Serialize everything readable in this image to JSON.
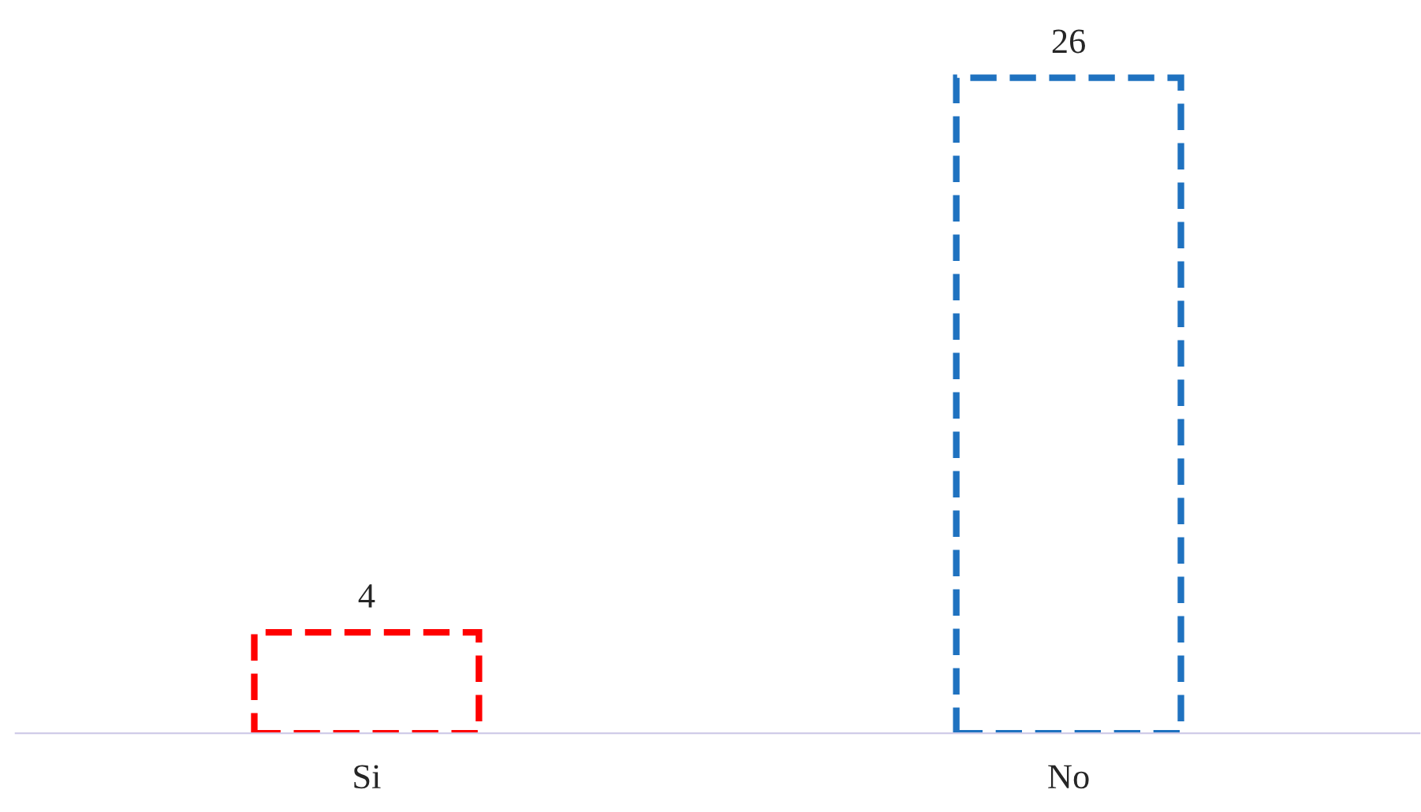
{
  "chart_data": {
    "type": "bar",
    "categories": [
      "Si",
      "No"
    ],
    "values": [
      4,
      26
    ],
    "colors": [
      "#ff0000",
      "#1f72c0"
    ],
    "data_labels": true,
    "line_style": "dashed"
  }
}
